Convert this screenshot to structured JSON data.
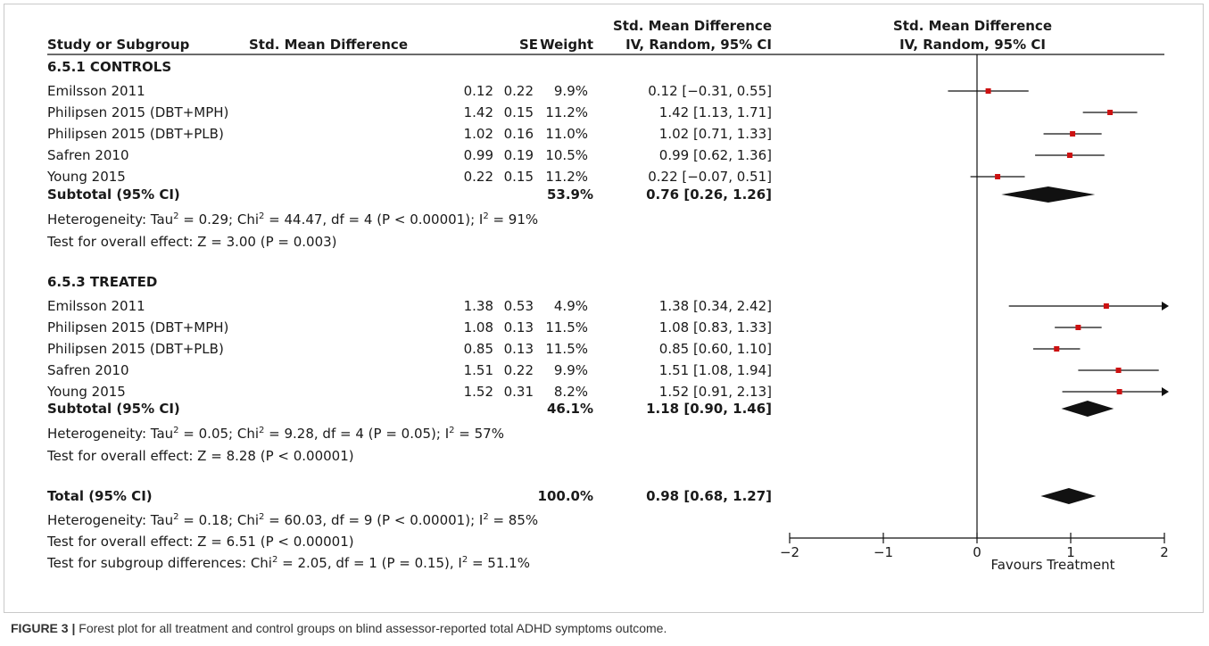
{
  "headers": {
    "study": "Study or Subgroup",
    "smd": "Std. Mean Difference",
    "se": "SE",
    "weight": "Weight",
    "ci_line1": "Std. Mean Difference",
    "ci_line2": "IV, Random, 95% CI",
    "plot_line1": "Std. Mean Difference",
    "plot_line2": "IV, Random, 95% CI"
  },
  "subgroups": [
    {
      "title": "6.5.1 CONTROLS",
      "studies": [
        {
          "name": "Emilsson 2011",
          "smd": "0.12",
          "se": "0.22",
          "weight": "9.9%",
          "ci": "0.12 [−0.31, 0.55]"
        },
        {
          "name": "Philipsen 2015 (DBT+MPH)",
          "smd": "1.42",
          "se": "0.15",
          "weight": "11.2%",
          "ci": "1.42 [1.13, 1.71]"
        },
        {
          "name": "Philipsen 2015 (DBT+PLB)",
          "smd": "1.02",
          "se": "0.16",
          "weight": "11.0%",
          "ci": "1.02 [0.71, 1.33]"
        },
        {
          "name": "Safren 2010",
          "smd": "0.99",
          "se": "0.19",
          "weight": "10.5%",
          "ci": "0.99 [0.62, 1.36]"
        },
        {
          "name": "Young 2015",
          "smd": "0.22",
          "se": "0.15",
          "weight": "11.2%",
          "ci": "0.22 [−0.07, 0.51]"
        }
      ],
      "subtotal": {
        "label": "Subtotal (95% CI)",
        "weight": "53.9%",
        "ci": "0.76 [0.26, 1.26]"
      },
      "heterogeneity": {
        "prefix": "Heterogeneity: Tau",
        "sup1": "2",
        "mid1": " = 0.29; Chi",
        "sup2": "2",
        "mid2": " = 44.47, df = 4 (P < 0.00001); I",
        "sup3": "2",
        "end": " = 91%"
      },
      "overall": "Test for overall effect: Z = 3.00 (P = 0.003)"
    },
    {
      "title": "6.5.3 TREATED",
      "studies": [
        {
          "name": "Emilsson 2011",
          "smd": "1.38",
          "se": "0.53",
          "weight": "4.9%",
          "ci": "1.38 [0.34, 2.42]"
        },
        {
          "name": "Philipsen 2015 (DBT+MPH)",
          "smd": "1.08",
          "se": "0.13",
          "weight": "11.5%",
          "ci": "1.08 [0.83, 1.33]"
        },
        {
          "name": "Philipsen 2015 (DBT+PLB)",
          "smd": "0.85",
          "se": "0.13",
          "weight": "11.5%",
          "ci": "0.85 [0.60, 1.10]"
        },
        {
          "name": "Safren 2010",
          "smd": "1.51",
          "se": "0.22",
          "weight": "9.9%",
          "ci": "1.51 [1.08, 1.94]"
        },
        {
          "name": "Young 2015",
          "smd": "1.52",
          "se": "0.31",
          "weight": "8.2%",
          "ci": "1.52 [0.91, 2.13]"
        }
      ],
      "subtotal": {
        "label": "Subtotal (95% CI)",
        "weight": "46.1%",
        "ci": "1.18 [0.90, 1.46]"
      },
      "heterogeneity": {
        "prefix": "Heterogeneity: Tau",
        "sup1": "2",
        "mid1": " = 0.05; Chi",
        "sup2": "2",
        "mid2": " = 9.28, df = 4 (P = 0.05); I",
        "sup3": "2",
        "end": " = 57%"
      },
      "overall": "Test for overall effect: Z = 8.28 (P < 0.00001)"
    }
  ],
  "total": {
    "label": "Total (95% CI)",
    "weight": "100.0%",
    "ci": "0.98 [0.68, 1.27]",
    "heterogeneity": {
      "prefix": "Heterogeneity: Tau",
      "sup1": "2",
      "mid1": " = 0.18; Chi",
      "sup2": "2",
      "mid2": " = 60.03, df = 9 (P < 0.00001); I",
      "sup3": "2",
      "end": " = 85%"
    },
    "overall": "Test for overall effect: Z = 6.51 (P < 0.00001)",
    "subgroup_diff": {
      "prefix": "Test for subgroup differences: Chi",
      "sup1": "2",
      "mid1": " = 2.05, df = 1 (P = 0.15), I",
      "sup2": "2",
      "end": " = 51.1%"
    }
  },
  "axis": {
    "ticks": [
      -2,
      -1,
      0,
      1,
      2
    ],
    "tick_labels": [
      "−2",
      "−1",
      "0",
      "1",
      "2"
    ],
    "xlim": [
      -2,
      2
    ],
    "favours_label": "Favours Treatment"
  },
  "colors": {
    "point": "#cc1111",
    "ink": "#111111"
  },
  "caption": {
    "label": "FIGURE 3 |",
    "text": " Forest plot for all treatment and control groups on blind assessor-reported total ADHD symptoms outcome."
  },
  "chart_data": {
    "type": "forest",
    "xlim": [
      -2,
      2
    ],
    "grid": false,
    "series": [
      {
        "name": "6.5.1 CONTROLS",
        "studies": [
          {
            "label": "Emilsson 2011",
            "estimate": 0.12,
            "lower": -0.31,
            "upper": 0.55
          },
          {
            "label": "Philipsen 2015 (DBT+MPH)",
            "estimate": 1.42,
            "lower": 1.13,
            "upper": 1.71
          },
          {
            "label": "Philipsen 2015 (DBT+PLB)",
            "estimate": 1.02,
            "lower": 0.71,
            "upper": 1.33
          },
          {
            "label": "Safren 2010",
            "estimate": 0.99,
            "lower": 0.62,
            "upper": 1.36
          },
          {
            "label": "Young 2015",
            "estimate": 0.22,
            "lower": -0.07,
            "upper": 0.51
          }
        ],
        "subtotal": {
          "estimate": 0.76,
          "lower": 0.26,
          "upper": 1.26
        }
      },
      {
        "name": "6.5.3 TREATED",
        "studies": [
          {
            "label": "Emilsson 2011",
            "estimate": 1.38,
            "lower": 0.34,
            "upper": 2.42
          },
          {
            "label": "Philipsen 2015 (DBT+MPH)",
            "estimate": 1.08,
            "lower": 0.83,
            "upper": 1.33
          },
          {
            "label": "Philipsen 2015 (DBT+PLB)",
            "estimate": 0.85,
            "lower": 0.6,
            "upper": 1.1
          },
          {
            "label": "Safren 2010",
            "estimate": 1.51,
            "lower": 1.08,
            "upper": 1.94
          },
          {
            "label": "Young 2015",
            "estimate": 1.52,
            "lower": 0.91,
            "upper": 2.13
          }
        ],
        "subtotal": {
          "estimate": 1.18,
          "lower": 0.9,
          "upper": 1.46
        }
      }
    ],
    "total": {
      "estimate": 0.98,
      "lower": 0.68,
      "upper": 1.27
    }
  }
}
